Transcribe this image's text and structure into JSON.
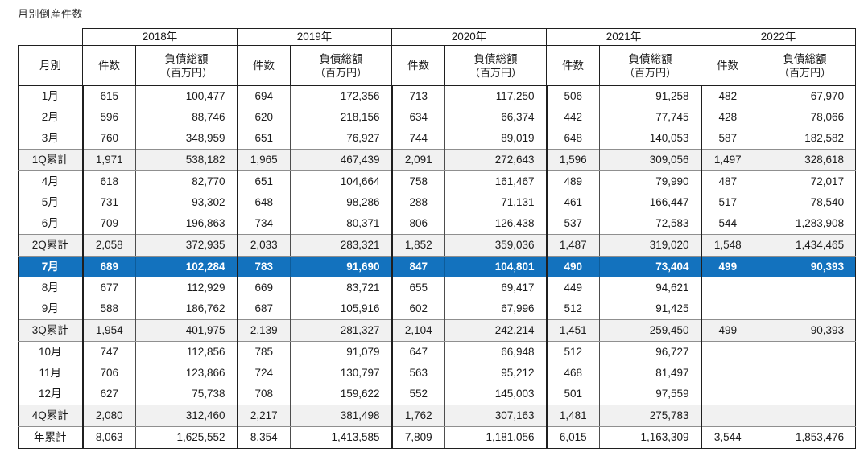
{
  "title": "月別倒産件数",
  "colors": {
    "highlight_bg": "#1372be",
    "highlight_text": "#ffffff",
    "summary_bg": "#f1f1f1",
    "border_dark": "#1f1f1f",
    "border_gray": "#8f8f8f"
  },
  "table": {
    "header": {
      "month_label": "月別",
      "years": [
        "2018年",
        "2019年",
        "2020年",
        "2021年",
        "2022年"
      ],
      "count_label": "件数",
      "debt_label": "負債総額",
      "debt_unit": "（百万円）"
    },
    "rows": [
      {
        "label": "1月",
        "type": "month",
        "cells": [
          "615",
          "100,477",
          "694",
          "172,356",
          "713",
          "117,250",
          "506",
          "91,258",
          "482",
          "67,970"
        ]
      },
      {
        "label": "2月",
        "type": "month",
        "cells": [
          "596",
          "88,746",
          "620",
          "218,156",
          "634",
          "66,374",
          "442",
          "77,745",
          "428",
          "78,066"
        ]
      },
      {
        "label": "3月",
        "type": "month",
        "cells": [
          "760",
          "348,959",
          "651",
          "76,927",
          "744",
          "89,019",
          "648",
          "140,053",
          "587",
          "182,582"
        ]
      },
      {
        "label": "1Q累計",
        "type": "summary",
        "cells": [
          "1,971",
          "538,182",
          "1,965",
          "467,439",
          "2,091",
          "272,643",
          "1,596",
          "309,056",
          "1,497",
          "328,618"
        ]
      },
      {
        "label": "4月",
        "type": "month",
        "cells": [
          "618",
          "82,770",
          "651",
          "104,664",
          "758",
          "161,467",
          "489",
          "79,990",
          "487",
          "72,017"
        ]
      },
      {
        "label": "5月",
        "type": "month",
        "cells": [
          "731",
          "93,302",
          "648",
          "98,286",
          "288",
          "71,131",
          "461",
          "166,447",
          "517",
          "78,540"
        ]
      },
      {
        "label": "6月",
        "type": "month",
        "cells": [
          "709",
          "196,863",
          "734",
          "80,371",
          "806",
          "126,438",
          "537",
          "72,583",
          "544",
          "1,283,908"
        ]
      },
      {
        "label": "2Q累計",
        "type": "summary",
        "cells": [
          "2,058",
          "372,935",
          "2,033",
          "283,321",
          "1,852",
          "359,036",
          "1,487",
          "319,020",
          "1,548",
          "1,434,465"
        ]
      },
      {
        "label": "7月",
        "type": "highlight",
        "cells": [
          "689",
          "102,284",
          "783",
          "91,690",
          "847",
          "104,801",
          "490",
          "73,404",
          "499",
          "90,393"
        ]
      },
      {
        "label": "8月",
        "type": "month",
        "cells": [
          "677",
          "112,929",
          "669",
          "83,721",
          "655",
          "69,417",
          "449",
          "94,621",
          "",
          ""
        ]
      },
      {
        "label": "9月",
        "type": "month",
        "cells": [
          "588",
          "186,762",
          "687",
          "105,916",
          "602",
          "67,996",
          "512",
          "91,425",
          "",
          ""
        ]
      },
      {
        "label": "3Q累計",
        "type": "summary",
        "cells": [
          "1,954",
          "401,975",
          "2,139",
          "281,327",
          "2,104",
          "242,214",
          "1,451",
          "259,450",
          "499",
          "90,393"
        ]
      },
      {
        "label": "10月",
        "type": "month",
        "cells": [
          "747",
          "112,856",
          "785",
          "91,079",
          "647",
          "66,948",
          "512",
          "96,727",
          "",
          ""
        ]
      },
      {
        "label": "11月",
        "type": "month",
        "cells": [
          "706",
          "123,866",
          "724",
          "130,797",
          "563",
          "95,212",
          "468",
          "81,497",
          "",
          ""
        ]
      },
      {
        "label": "12月",
        "type": "month",
        "cells": [
          "627",
          "75,738",
          "708",
          "159,622",
          "552",
          "145,003",
          "501",
          "97,559",
          "",
          ""
        ]
      },
      {
        "label": "4Q累計",
        "type": "summary",
        "cells": [
          "2,080",
          "312,460",
          "2,217",
          "381,498",
          "1,762",
          "307,163",
          "1,481",
          "275,783",
          "",
          ""
        ]
      },
      {
        "label": "年累計",
        "type": "total",
        "cells": [
          "8,063",
          "1,625,552",
          "8,354",
          "1,413,585",
          "7,809",
          "1,181,056",
          "6,015",
          "1,163,309",
          "3,544",
          "1,853,476"
        ]
      }
    ]
  }
}
